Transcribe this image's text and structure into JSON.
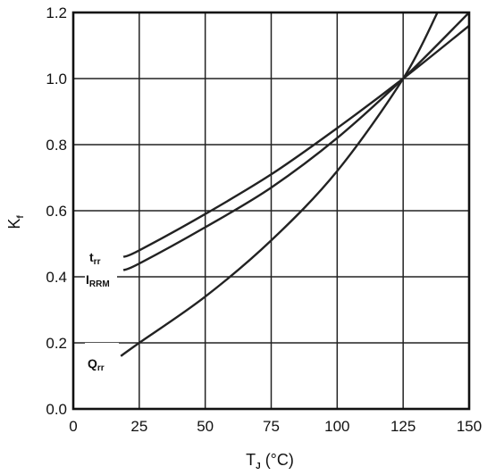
{
  "chart_data": {
    "type": "line",
    "title": "",
    "xlabel": {
      "main": "T",
      "sub": "J",
      "unit": " (°C)"
    },
    "ylabel": {
      "main": "K",
      "sub": "f"
    },
    "xlim": [
      0,
      150
    ],
    "ylim": [
      0.0,
      1.2
    ],
    "x_ticks": [
      0,
      25,
      50,
      75,
      100,
      125,
      150
    ],
    "x_tick_labels": [
      "0",
      "25",
      "50",
      "75",
      "100",
      "125",
      "150"
    ],
    "y_ticks": [
      0.0,
      0.2,
      0.4,
      0.6,
      0.8,
      1.0,
      1.2
    ],
    "y_tick_labels": [
      "0.0",
      "0.2",
      "0.4",
      "0.6",
      "0.8",
      "1.0",
      "1.2"
    ],
    "grid": true,
    "legend": "none",
    "series": [
      {
        "name": "trr",
        "label": {
          "main": "t",
          "sub": "rr"
        },
        "x": [
          19,
          25,
          50,
          75,
          100,
          125,
          150
        ],
        "y": [
          0.46,
          0.48,
          0.59,
          0.71,
          0.85,
          1.0,
          1.16
        ]
      },
      {
        "name": "IRRM",
        "label": {
          "main": "I",
          "sub": "RRM"
        },
        "x": [
          19,
          25,
          50,
          75,
          100,
          125,
          150
        ],
        "y": [
          0.42,
          0.44,
          0.55,
          0.67,
          0.82,
          1.0,
          1.2
        ]
      },
      {
        "name": "Qrr",
        "label": {
          "main": "Q",
          "sub": "rr"
        },
        "x": [
          18,
          25,
          50,
          75,
          100,
          125,
          138
        ],
        "y": [
          0.16,
          0.2,
          0.34,
          0.51,
          0.72,
          1.0,
          1.2
        ]
      }
    ]
  }
}
